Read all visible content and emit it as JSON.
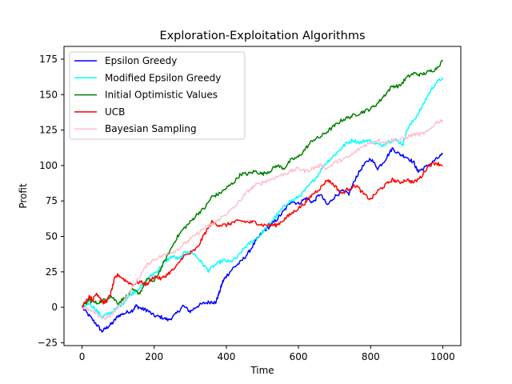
{
  "chart_data": {
    "type": "line",
    "title": "Exploration-Exploitation Algorithms",
    "xlabel": "Time",
    "ylabel": "Profit",
    "xlim": [
      -50,
      1050
    ],
    "ylim": [
      -27,
      184
    ],
    "xticks": [
      0,
      200,
      400,
      600,
      800,
      1000
    ],
    "yticks": [
      -25,
      0,
      25,
      50,
      75,
      100,
      125,
      150,
      175
    ],
    "grid": false,
    "legend_position": "top-left",
    "series": [
      {
        "name": "Epsilon Greedy",
        "color": "#0000ff",
        "points": [
          [
            0,
            0
          ],
          [
            20,
            -6
          ],
          [
            40,
            -12
          ],
          [
            55,
            -17
          ],
          [
            70,
            -14
          ],
          [
            85,
            -11
          ],
          [
            100,
            -6
          ],
          [
            120,
            -4
          ],
          [
            140,
            -2
          ],
          [
            150,
            1
          ],
          [
            165,
            -1
          ],
          [
            180,
            -2
          ],
          [
            200,
            -6
          ],
          [
            220,
            -7
          ],
          [
            240,
            -9
          ],
          [
            260,
            -5
          ],
          [
            280,
            1
          ],
          [
            300,
            -3
          ],
          [
            320,
            1
          ],
          [
            340,
            3
          ],
          [
            360,
            4
          ],
          [
            370,
            3
          ],
          [
            380,
            10
          ],
          [
            390,
            18
          ],
          [
            400,
            22
          ],
          [
            420,
            28
          ],
          [
            440,
            32
          ],
          [
            460,
            38
          ],
          [
            480,
            46
          ],
          [
            500,
            53
          ],
          [
            520,
            57
          ],
          [
            540,
            62
          ],
          [
            560,
            68
          ],
          [
            580,
            75
          ],
          [
            600,
            73
          ],
          [
            620,
            77
          ],
          [
            640,
            74
          ],
          [
            660,
            80
          ],
          [
            680,
            72
          ],
          [
            700,
            78
          ],
          [
            720,
            82
          ],
          [
            740,
            80
          ],
          [
            760,
            92
          ],
          [
            780,
            100
          ],
          [
            800,
            105
          ],
          [
            820,
            98
          ],
          [
            840,
            104
          ],
          [
            860,
            112
          ],
          [
            880,
            108
          ],
          [
            900,
            106
          ],
          [
            920,
            102
          ],
          [
            930,
            96
          ],
          [
            940,
            97
          ],
          [
            960,
            100
          ],
          [
            980,
            104
          ],
          [
            1000,
            108
          ]
        ]
      },
      {
        "name": "Modified Epsilon Greedy",
        "color": "#00ffff",
        "points": [
          [
            0,
            0
          ],
          [
            20,
            3
          ],
          [
            40,
            -2
          ],
          [
            55,
            -7
          ],
          [
            70,
            -5
          ],
          [
            90,
            -2
          ],
          [
            110,
            2
          ],
          [
            130,
            8
          ],
          [
            150,
            12
          ],
          [
            170,
            16
          ],
          [
            190,
            22
          ],
          [
            210,
            26
          ],
          [
            230,
            32
          ],
          [
            250,
            36
          ],
          [
            270,
            34
          ],
          [
            290,
            40
          ],
          [
            310,
            38
          ],
          [
            330,
            32
          ],
          [
            350,
            26
          ],
          [
            370,
            30
          ],
          [
            390,
            33
          ],
          [
            410,
            32
          ],
          [
            430,
            35
          ],
          [
            450,
            42
          ],
          [
            470,
            46
          ],
          [
            490,
            50
          ],
          [
            510,
            56
          ],
          [
            530,
            62
          ],
          [
            550,
            68
          ],
          [
            570,
            74
          ],
          [
            590,
            76
          ],
          [
            610,
            80
          ],
          [
            630,
            86
          ],
          [
            650,
            92
          ],
          [
            670,
            100
          ],
          [
            690,
            105
          ],
          [
            710,
            110
          ],
          [
            730,
            115
          ],
          [
            750,
            118
          ],
          [
            770,
            116
          ],
          [
            790,
            118
          ],
          [
            810,
            116
          ],
          [
            830,
            114
          ],
          [
            850,
            117
          ],
          [
            870,
            118
          ],
          [
            890,
            115
          ],
          [
            900,
            125
          ],
          [
            920,
            132
          ],
          [
            940,
            140
          ],
          [
            960,
            150
          ],
          [
            980,
            158
          ],
          [
            1000,
            162
          ]
        ]
      },
      {
        "name": "Initial Optimistic Values",
        "color": "#008000",
        "points": [
          [
            0,
            0
          ],
          [
            20,
            5
          ],
          [
            40,
            3
          ],
          [
            60,
            5
          ],
          [
            80,
            8
          ],
          [
            100,
            3
          ],
          [
            120,
            7
          ],
          [
            140,
            12
          ],
          [
            160,
            10
          ],
          [
            180,
            20
          ],
          [
            200,
            18
          ],
          [
            220,
            28
          ],
          [
            240,
            38
          ],
          [
            260,
            48
          ],
          [
            280,
            55
          ],
          [
            300,
            60
          ],
          [
            320,
            66
          ],
          [
            340,
            70
          ],
          [
            360,
            78
          ],
          [
            380,
            80
          ],
          [
            400,
            84
          ],
          [
            420,
            88
          ],
          [
            440,
            94
          ],
          [
            460,
            94
          ],
          [
            480,
            96
          ],
          [
            500,
            94
          ],
          [
            520,
            96
          ],
          [
            540,
            100
          ],
          [
            560,
            98
          ],
          [
            580,
            104
          ],
          [
            600,
            106
          ],
          [
            620,
            112
          ],
          [
            640,
            118
          ],
          [
            660,
            120
          ],
          [
            680,
            124
          ],
          [
            700,
            128
          ],
          [
            720,
            132
          ],
          [
            740,
            134
          ],
          [
            760,
            136
          ],
          [
            780,
            138
          ],
          [
            800,
            140
          ],
          [
            820,
            144
          ],
          [
            840,
            150
          ],
          [
            860,
            156
          ],
          [
            880,
            156
          ],
          [
            900,
            162
          ],
          [
            920,
            165
          ],
          [
            940,
            164
          ],
          [
            960,
            166
          ],
          [
            980,
            168
          ],
          [
            1000,
            174
          ]
        ]
      },
      {
        "name": "UCB",
        "color": "#ff0000",
        "points": [
          [
            0,
            0
          ],
          [
            20,
            8
          ],
          [
            30,
            5
          ],
          [
            40,
            10
          ],
          [
            50,
            7
          ],
          [
            60,
            3
          ],
          [
            70,
            5
          ],
          [
            80,
            10
          ],
          [
            90,
            20
          ],
          [
            100,
            23
          ],
          [
            120,
            19
          ],
          [
            140,
            16
          ],
          [
            160,
            18
          ],
          [
            180,
            16
          ],
          [
            200,
            22
          ],
          [
            220,
            20
          ],
          [
            240,
            24
          ],
          [
            260,
            28
          ],
          [
            280,
            36
          ],
          [
            300,
            38
          ],
          [
            320,
            42
          ],
          [
            340,
            52
          ],
          [
            360,
            60
          ],
          [
            380,
            58
          ],
          [
            400,
            58
          ],
          [
            420,
            60
          ],
          [
            440,
            61
          ],
          [
            460,
            60
          ],
          [
            480,
            60
          ],
          [
            500,
            58
          ],
          [
            520,
            58
          ],
          [
            540,
            58
          ],
          [
            560,
            62
          ],
          [
            580,
            66
          ],
          [
            600,
            70
          ],
          [
            620,
            74
          ],
          [
            640,
            80
          ],
          [
            660,
            84
          ],
          [
            680,
            90
          ],
          [
            700,
            86
          ],
          [
            720,
            80
          ],
          [
            740,
            84
          ],
          [
            760,
            86
          ],
          [
            780,
            80
          ],
          [
            800,
            76
          ],
          [
            820,
            82
          ],
          [
            840,
            86
          ],
          [
            860,
            90
          ],
          [
            880,
            88
          ],
          [
            900,
            90
          ],
          [
            920,
            88
          ],
          [
            940,
            92
          ],
          [
            960,
            100
          ],
          [
            980,
            102
          ],
          [
            1000,
            100
          ]
        ]
      },
      {
        "name": "Bayesian Sampling",
        "color": "#ffc0cb",
        "points": [
          [
            0,
            0
          ],
          [
            20,
            -2
          ],
          [
            40,
            -5
          ],
          [
            60,
            -8
          ],
          [
            80,
            -6
          ],
          [
            100,
            0
          ],
          [
            120,
            6
          ],
          [
            140,
            14
          ],
          [
            160,
            22
          ],
          [
            180,
            30
          ],
          [
            200,
            34
          ],
          [
            220,
            36
          ],
          [
            240,
            38
          ],
          [
            260,
            40
          ],
          [
            280,
            44
          ],
          [
            300,
            48
          ],
          [
            320,
            52
          ],
          [
            340,
            56
          ],
          [
            360,
            58
          ],
          [
            380,
            62
          ],
          [
            400,
            66
          ],
          [
            420,
            70
          ],
          [
            440,
            76
          ],
          [
            460,
            82
          ],
          [
            480,
            86
          ],
          [
            500,
            88
          ],
          [
            520,
            90
          ],
          [
            540,
            92
          ],
          [
            560,
            94
          ],
          [
            580,
            96
          ],
          [
            600,
            98
          ],
          [
            620,
            96
          ],
          [
            640,
            98
          ],
          [
            660,
            100
          ],
          [
            680,
            98
          ],
          [
            700,
            102
          ],
          [
            720,
            104
          ],
          [
            740,
            106
          ],
          [
            760,
            110
          ],
          [
            780,
            114
          ],
          [
            800,
            116
          ],
          [
            820,
            118
          ],
          [
            840,
            116
          ],
          [
            860,
            118
          ],
          [
            880,
            118
          ],
          [
            900,
            120
          ],
          [
            920,
            122
          ],
          [
            940,
            122
          ],
          [
            960,
            124
          ],
          [
            980,
            130
          ],
          [
            1000,
            132
          ]
        ]
      }
    ]
  }
}
